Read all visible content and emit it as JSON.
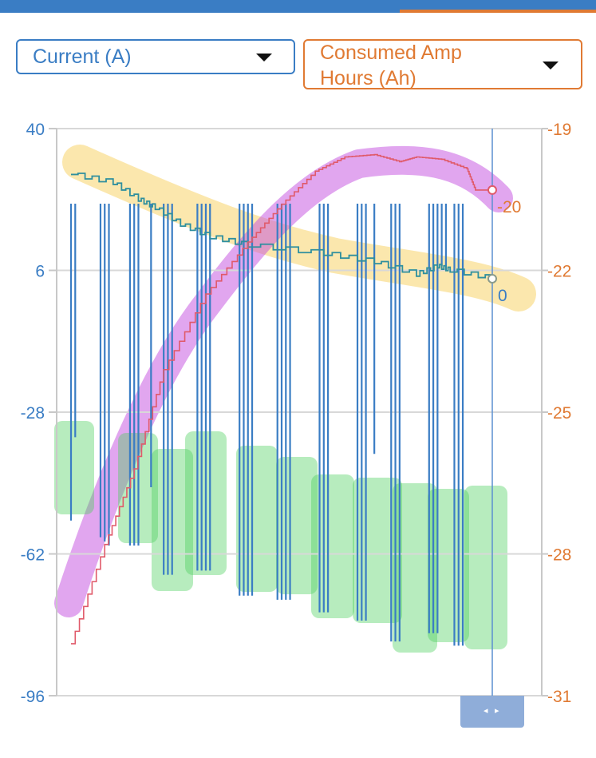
{
  "header": {
    "accent": "#3a7dc4",
    "tab_accent": "#e07a33"
  },
  "selectors": {
    "left": {
      "label": "Current (A)",
      "color": "#3a7dc4",
      "icon": "chevron-down-icon"
    },
    "right": {
      "label": "Consumed Amp\nHours (Ah)",
      "color": "#e07a33",
      "icon": "chevron-down-icon"
    }
  },
  "chart_data": {
    "type": "line",
    "left_axis": {
      "ticks": [
        "40",
        "6",
        "-28",
        "-62",
        "-96"
      ],
      "ylim": [
        -96,
        40
      ],
      "color": "#3a7dc4"
    },
    "right_axis": {
      "ticks": [
        "-19",
        "-22",
        "-25",
        "-28",
        "-31"
      ],
      "ylim": [
        -31,
        -19
      ],
      "color": "#e07a33"
    },
    "grid": true,
    "cursor_labels": {
      "ah": "-20",
      "current": "0"
    },
    "series": [
      {
        "axis": "left",
        "color": "#2f8f9e",
        "points": [
          [
            0,
            29
          ],
          [
            0.1,
            27
          ],
          [
            0.16,
            23
          ],
          [
            0.2,
            21
          ],
          [
            0.26,
            17
          ],
          [
            0.33,
            14
          ],
          [
            0.42,
            12
          ],
          [
            0.6,
            10
          ],
          [
            0.72,
            8
          ],
          [
            0.82,
            5
          ],
          [
            0.87,
            7
          ],
          [
            0.9,
            6
          ],
          [
            1,
            4
          ]
        ],
        "spikes": [
          {
            "x": 0.0,
            "y": -54
          },
          {
            "x": 0.01,
            "y": -34
          },
          {
            "x": 0.07,
            "y": -58
          },
          {
            "x": 0.08,
            "y": -59
          },
          {
            "x": 0.09,
            "y": -60
          },
          {
            "x": 0.14,
            "y": -60
          },
          {
            "x": 0.15,
            "y": -60
          },
          {
            "x": 0.16,
            "y": -60
          },
          {
            "x": 0.19,
            "y": -46
          },
          {
            "x": 0.22,
            "y": -67
          },
          {
            "x": 0.23,
            "y": -67
          },
          {
            "x": 0.24,
            "y": -67
          },
          {
            "x": 0.3,
            "y": -66
          },
          {
            "x": 0.31,
            "y": -66
          },
          {
            "x": 0.32,
            "y": -66
          },
          {
            "x": 0.33,
            "y": -66
          },
          {
            "x": 0.4,
            "y": -72
          },
          {
            "x": 0.41,
            "y": -72
          },
          {
            "x": 0.42,
            "y": -72
          },
          {
            "x": 0.43,
            "y": -72
          },
          {
            "x": 0.49,
            "y": -73
          },
          {
            "x": 0.5,
            "y": -73
          },
          {
            "x": 0.51,
            "y": -73
          },
          {
            "x": 0.52,
            "y": -73
          },
          {
            "x": 0.59,
            "y": -76
          },
          {
            "x": 0.6,
            "y": -76
          },
          {
            "x": 0.61,
            "y": -76
          },
          {
            "x": 0.68,
            "y": -78
          },
          {
            "x": 0.69,
            "y": -78
          },
          {
            "x": 0.7,
            "y": -78
          },
          {
            "x": 0.72,
            "y": -38
          },
          {
            "x": 0.76,
            "y": -83
          },
          {
            "x": 0.77,
            "y": -83
          },
          {
            "x": 0.78,
            "y": -83
          },
          {
            "x": 0.85,
            "y": -81
          },
          {
            "x": 0.86,
            "y": -81
          },
          {
            "x": 0.87,
            "y": -81
          },
          {
            "x": 0.91,
            "y": -84
          },
          {
            "x": 0.92,
            "y": -84
          },
          {
            "x": 0.93,
            "y": -84
          },
          {
            "x": 0.88,
            "y": 7
          },
          {
            "x": 0.89,
            "y": 6
          }
        ]
      },
      {
        "axis": "right",
        "color": "#e05a6a",
        "points": [
          [
            0,
            -29.9
          ],
          [
            0.08,
            -27.8
          ],
          [
            0.15,
            -26.2
          ],
          [
            0.22,
            -24.1
          ],
          [
            0.32,
            -22.5
          ],
          [
            0.42,
            -21.4
          ],
          [
            0.5,
            -20.6
          ],
          [
            0.58,
            -19.9
          ],
          [
            0.65,
            -19.6
          ],
          [
            0.72,
            -19.55
          ],
          [
            0.78,
            -19.7
          ],
          [
            0.82,
            -19.6
          ],
          [
            0.88,
            -19.65
          ],
          [
            0.94,
            -19.85
          ],
          [
            0.96,
            -20.3
          ],
          [
            1,
            -20.3
          ]
        ]
      }
    ],
    "highlights": [
      {
        "color": "#f6c94a",
        "label": ""
      },
      {
        "color": "#c44ee0",
        "label": ""
      },
      {
        "color": "#4ccf5c",
        "label": ""
      }
    ]
  }
}
